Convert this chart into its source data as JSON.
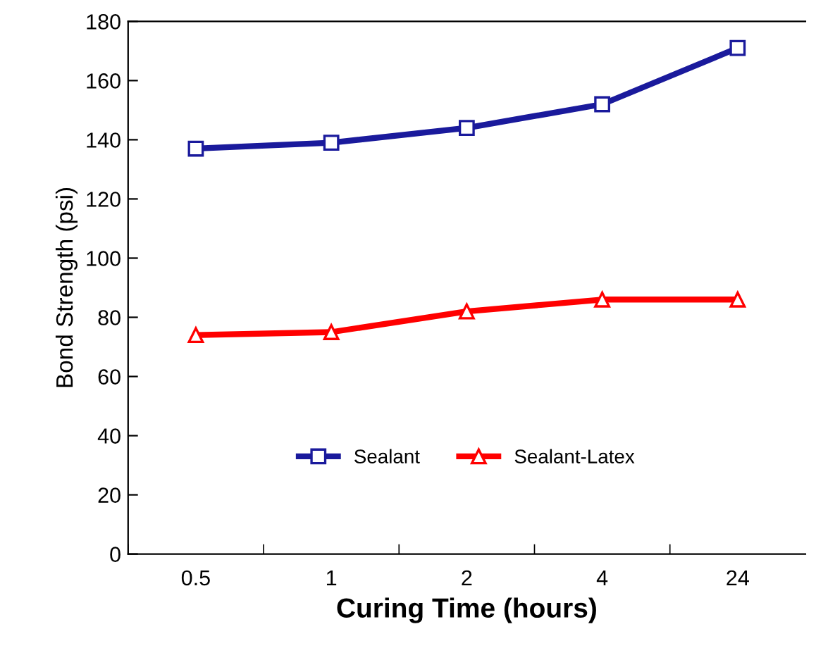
{
  "chart_data": {
    "type": "line",
    "xlabel": "Curing Time (hours)",
    "ylabel": "Bond Strength (psi)",
    "categories": [
      "0.5",
      "1",
      "2",
      "4",
      "24"
    ],
    "series": [
      {
        "name": "Sealant",
        "color": "#1a1a9c",
        "marker": "square",
        "values": [
          137,
          139,
          144,
          152,
          171
        ]
      },
      {
        "name": "Sealant-Latex",
        "color": "#ff0000",
        "marker": "triangle",
        "values": [
          74,
          75,
          82,
          86,
          86
        ]
      }
    ],
    "ylim": [
      0,
      180
    ],
    "yticks": [
      0,
      20,
      40,
      60,
      80,
      100,
      120,
      140,
      160,
      180
    ],
    "grid": false,
    "legend": "bottom",
    "line_style": "solid"
  }
}
